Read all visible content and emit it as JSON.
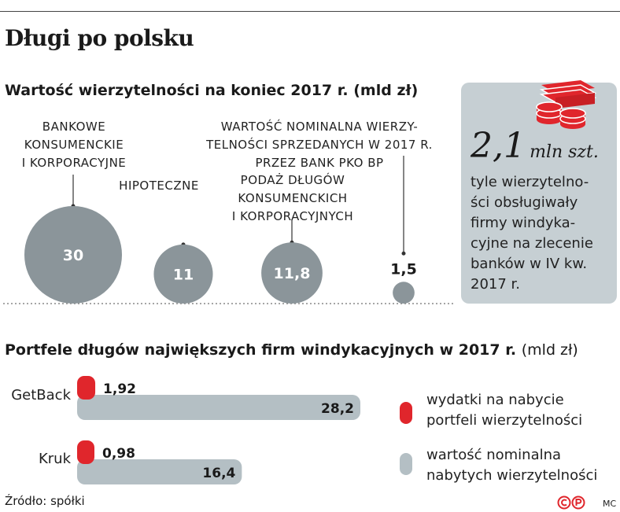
{
  "title": "Długi po polsku",
  "colors": {
    "grey": "#8b959a",
    "red": "#e0262c",
    "bar_grey": "#b4bfc4",
    "box_bg": "#c6cfd3"
  },
  "section1": {
    "title": "Wartość wierzytelności na koniec 2017 r. (mld zł)",
    "categories": [
      "BANKOWE\nKONSUMENCKIE\nI KORPORACYJNE",
      "HIPOTECZNE",
      "PODAŻ DŁUGÓW\nKONSUMENCKICH\nI KORPORACYJNYCH",
      "WARTOŚĆ NOMINALNA WIERZY-\nTELNOŚCI SPRZEDANYCH W 2017 R.\nPRZEZ BANK PKO BP"
    ],
    "value_labels": [
      "30",
      "11",
      "11,8",
      "1,5"
    ]
  },
  "side": {
    "icon": "money-stack-icon",
    "number": "2,1",
    "unit": "mln szt.",
    "text": "tyle wierzytelno-\nści obsługiwały\nfirmy windyka-\ncyjne na zlecenie\nbanków w IV kw.\n2017 r."
  },
  "section2": {
    "title_bold": "Portfele długów największych firm windykacyjnych w 2017 r.",
    "title_unit": "(mld zł)",
    "companies": [
      "GetBack",
      "Kruk"
    ],
    "spend_labels": [
      "1,92",
      "0,98"
    ],
    "nominal_labels": [
      "28,2",
      "16,4"
    ],
    "legend": [
      "wydatki na nabycie\nportfeli wierzytelności",
      "wartość nominalna\nnabytych wierzytelności"
    ]
  },
  "chart_data": [
    {
      "type": "bubble",
      "title": "Wartość wierzytelności na koniec 2017 r. (mld zł)",
      "categories": [
        "BANKOWE KONSUMENCKIE I KORPORACYJNE",
        "HIPOTECZNE",
        "PODAŻ DŁUGÓW KONSUMENCKICH I KORPORACYJNYCH",
        "WARTOŚĆ NOMINALNA WIERZYTELNOŚCI SPRZEDANYCH W 2017 R. PRZEZ BANK PKO BP"
      ],
      "values": [
        30,
        11,
        11.8,
        1.5
      ]
    },
    {
      "type": "bar",
      "orientation": "horizontal",
      "title": "Portfele długów największych firm windykacyjnych w 2017 r. (mld zł)",
      "categories": [
        "GetBack",
        "Kruk"
      ],
      "series": [
        {
          "name": "wydatki na nabycie portfeli wierzytelności",
          "values": [
            1.92,
            0.98
          ]
        },
        {
          "name": "wartość nominalna nabytych wierzytelności",
          "values": [
            28.2,
            16.4
          ]
        }
      ]
    }
  ],
  "footer": {
    "source": "Źródło: spółki",
    "credit": "MC"
  }
}
